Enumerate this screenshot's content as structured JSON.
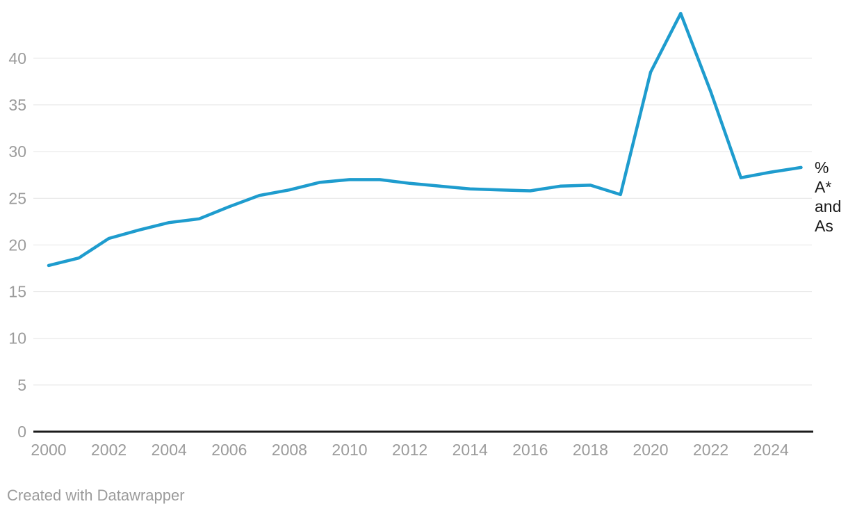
{
  "chart_data": {
    "type": "line",
    "title": "",
    "xlabel": "",
    "ylabel": "",
    "xlim": [
      2000,
      2025
    ],
    "ylim": [
      0,
      46
    ],
    "grid": true,
    "legend_position": "inline-right",
    "x_ticks": [
      2000,
      2002,
      2004,
      2006,
      2008,
      2010,
      2012,
      2014,
      2016,
      2018,
      2020,
      2022,
      2024
    ],
    "y_ticks": [
      0,
      5,
      10,
      15,
      20,
      25,
      30,
      35,
      40
    ],
    "series": [
      {
        "name": "% A* and As",
        "x": [
          2000,
          2001,
          2002,
          2003,
          2004,
          2005,
          2006,
          2007,
          2008,
          2009,
          2010,
          2011,
          2012,
          2013,
          2014,
          2015,
          2016,
          2017,
          2018,
          2019,
          2020,
          2021,
          2022,
          2023,
          2024,
          2025
        ],
        "values": [
          17.8,
          18.6,
          20.7,
          21.6,
          22.4,
          22.8,
          24.1,
          25.3,
          25.9,
          26.7,
          27.0,
          27.0,
          26.6,
          26.3,
          26.0,
          25.9,
          25.8,
          26.3,
          26.4,
          25.4,
          38.5,
          44.8,
          36.4,
          27.2,
          27.8,
          28.3
        ]
      }
    ],
    "series_label_lines": [
      "%",
      "A*",
      "and",
      "As"
    ],
    "style": {
      "line_color": "#1e9cce",
      "grid_color": "#e4e4e4",
      "axis_color": "#1b1b1b",
      "tick_label_color": "#9b9b9b",
      "annotation_color": "#1a1a1a"
    }
  },
  "footer": {
    "attribution": "Created with Datawrapper"
  }
}
